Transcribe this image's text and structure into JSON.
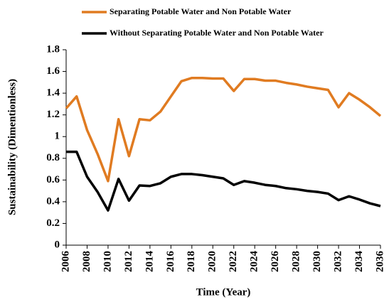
{
  "chart_data": {
    "type": "line",
    "xlabel": "Time (Year)",
    "ylabel": "Sustainability (Dimentionless)",
    "x": [
      2006,
      2007,
      2008,
      2009,
      2010,
      2011,
      2012,
      2013,
      2014,
      2015,
      2016,
      2017,
      2018,
      2019,
      2020,
      2021,
      2022,
      2023,
      2024,
      2025,
      2026,
      2027,
      2028,
      2029,
      2030,
      2031,
      2032,
      2033,
      2034,
      2035,
      2036
    ],
    "series": [
      {
        "name": "Separating Potable Water and  Non  Potable Water",
        "color": "#e07b21",
        "values": [
          1.26,
          1.37,
          1.06,
          0.84,
          0.59,
          1.16,
          0.82,
          1.16,
          1.15,
          1.23,
          1.37,
          1.51,
          1.54,
          1.54,
          1.535,
          1.535,
          1.42,
          1.53,
          1.53,
          1.515,
          1.515,
          1.495,
          1.48,
          1.46,
          1.445,
          1.43,
          1.27,
          1.4,
          1.34,
          1.27,
          1.19
        ]
      },
      {
        "name": "Without Separating Potable Water and  Non  Potable Water",
        "color": "#000000",
        "values": [
          0.86,
          0.86,
          0.63,
          0.49,
          0.32,
          0.61,
          0.41,
          0.55,
          0.545,
          0.57,
          0.63,
          0.655,
          0.655,
          0.645,
          0.63,
          0.615,
          0.555,
          0.59,
          0.575,
          0.555,
          0.545,
          0.525,
          0.515,
          0.5,
          0.49,
          0.475,
          0.415,
          0.45,
          0.42,
          0.385,
          0.36
        ]
      }
    ],
    "xlim": [
      2006,
      2036
    ],
    "xticks": [
      2006,
      2008,
      2010,
      2012,
      2014,
      2016,
      2018,
      2020,
      2022,
      2024,
      2026,
      2028,
      2030,
      2032,
      2034,
      2036
    ],
    "ylim": [
      0,
      1.8
    ],
    "yticks": [
      0,
      0.2,
      0.4,
      0.6,
      0.8,
      1,
      1.2,
      1.4,
      1.6,
      1.8
    ],
    "grid": false,
    "legend": "top"
  }
}
